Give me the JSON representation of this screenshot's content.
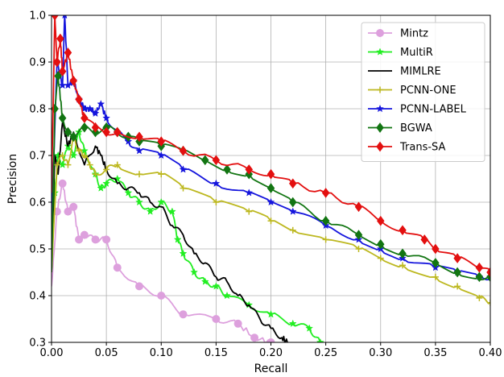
{
  "chart_data": {
    "type": "line",
    "title": "",
    "xlabel": "Recall",
    "ylabel": "Precision",
    "xlim": [
      0.0,
      0.4
    ],
    "ylim": [
      0.3,
      1.0
    ],
    "xticks": [
      "0.00",
      "0.05",
      "0.10",
      "0.15",
      "0.20",
      "0.25",
      "0.30",
      "0.35",
      "0.40"
    ],
    "yticks": [
      "0.3",
      "0.4",
      "0.5",
      "0.6",
      "0.7",
      "0.8",
      "0.9",
      "1.0"
    ],
    "grid": true,
    "legend_position": "top-right",
    "series": [
      {
        "name": "Mintz",
        "color": "#dda0dd",
        "marker": "circle",
        "x": [
          0.0,
          0.005,
          0.01,
          0.015,
          0.02,
          0.025,
          0.03,
          0.04,
          0.05,
          0.06,
          0.08,
          0.1,
          0.12,
          0.15,
          0.17,
          0.185,
          0.2
        ],
        "y": [
          0.42,
          0.58,
          0.64,
          0.58,
          0.59,
          0.52,
          0.53,
          0.52,
          0.52,
          0.46,
          0.42,
          0.4,
          0.36,
          0.35,
          0.34,
          0.31,
          0.3
        ]
      },
      {
        "name": "MultiR",
        "color": "#22ee22",
        "marker": "star",
        "x": [
          0.0,
          0.003,
          0.006,
          0.01,
          0.015,
          0.02,
          0.025,
          0.03,
          0.04,
          0.045,
          0.05,
          0.06,
          0.07,
          0.08,
          0.09,
          0.1,
          0.11,
          0.115,
          0.12,
          0.13,
          0.14,
          0.15,
          0.16,
          0.18,
          0.2,
          0.22,
          0.235,
          0.245
        ],
        "y": [
          0.45,
          0.62,
          0.7,
          0.68,
          0.72,
          0.7,
          0.75,
          0.71,
          0.66,
          0.63,
          0.64,
          0.65,
          0.62,
          0.6,
          0.58,
          0.6,
          0.58,
          0.52,
          0.49,
          0.45,
          0.43,
          0.42,
          0.4,
          0.38,
          0.36,
          0.34,
          0.33,
          0.3
        ]
      },
      {
        "name": "MIMLRE",
        "color": "#000000",
        "marker": "none",
        "x": [
          0.0,
          0.003,
          0.006,
          0.01,
          0.015,
          0.02,
          0.03,
          0.04,
          0.045,
          0.05,
          0.06,
          0.07,
          0.08,
          0.09,
          0.1,
          0.11,
          0.12,
          0.13,
          0.14,
          0.15,
          0.16,
          0.17,
          0.18,
          0.19,
          0.2,
          0.21,
          0.215
        ],
        "y": [
          0.45,
          0.7,
          0.66,
          0.77,
          0.72,
          0.75,
          0.68,
          0.72,
          0.7,
          0.67,
          0.64,
          0.63,
          0.62,
          0.6,
          0.59,
          0.55,
          0.53,
          0.49,
          0.47,
          0.44,
          0.43,
          0.4,
          0.38,
          0.35,
          0.33,
          0.31,
          0.3
        ]
      },
      {
        "name": "PCNN-ONE",
        "color": "#bdb820",
        "marker": "plus",
        "x": [
          0.0,
          0.005,
          0.01,
          0.015,
          0.02,
          0.025,
          0.03,
          0.035,
          0.04,
          0.05,
          0.06,
          0.08,
          0.1,
          0.12,
          0.15,
          0.18,
          0.2,
          0.22,
          0.25,
          0.28,
          0.3,
          0.32,
          0.35,
          0.37,
          0.39,
          0.4
        ],
        "y": [
          0.45,
          0.68,
          0.7,
          0.68,
          0.74,
          0.71,
          0.7,
          0.68,
          0.66,
          0.67,
          0.68,
          0.66,
          0.66,
          0.63,
          0.6,
          0.58,
          0.56,
          0.54,
          0.52,
          0.5,
          0.48,
          0.465,
          0.44,
          0.42,
          0.395,
          0.385
        ]
      },
      {
        "name": "PCNN-LABEL",
        "color": "#1515dd",
        "marker": "star",
        "x": [
          0.0,
          0.005,
          0.01,
          0.012,
          0.015,
          0.02,
          0.025,
          0.03,
          0.035,
          0.04,
          0.045,
          0.05,
          0.06,
          0.07,
          0.08,
          0.1,
          0.12,
          0.15,
          0.18,
          0.2,
          0.22,
          0.25,
          0.28,
          0.3,
          0.32,
          0.35,
          0.37,
          0.39,
          0.4
        ],
        "y": [
          0.55,
          0.9,
          0.85,
          1.0,
          0.85,
          0.86,
          0.82,
          0.8,
          0.8,
          0.79,
          0.81,
          0.78,
          0.75,
          0.73,
          0.71,
          0.7,
          0.67,
          0.64,
          0.62,
          0.6,
          0.58,
          0.55,
          0.52,
          0.5,
          0.48,
          0.46,
          0.45,
          0.44,
          0.44
        ]
      },
      {
        "name": "BGWA",
        "color": "#127512",
        "marker": "diamond",
        "x": [
          0.0,
          0.003,
          0.006,
          0.01,
          0.015,
          0.02,
          0.03,
          0.04,
          0.05,
          0.06,
          0.07,
          0.08,
          0.1,
          0.12,
          0.14,
          0.16,
          0.18,
          0.2,
          0.22,
          0.25,
          0.28,
          0.3,
          0.32,
          0.35,
          0.37,
          0.39,
          0.4
        ],
        "y": [
          0.45,
          0.8,
          0.87,
          0.78,
          0.75,
          0.74,
          0.76,
          0.75,
          0.76,
          0.75,
          0.74,
          0.73,
          0.72,
          0.71,
          0.69,
          0.67,
          0.66,
          0.63,
          0.6,
          0.56,
          0.53,
          0.51,
          0.49,
          0.47,
          0.45,
          0.44,
          0.44
        ]
      },
      {
        "name": "Trans-SA",
        "color": "#e31010",
        "marker": "diamond",
        "x": [
          0.0,
          0.003,
          0.005,
          0.008,
          0.01,
          0.015,
          0.02,
          0.025,
          0.03,
          0.04,
          0.05,
          0.06,
          0.08,
          0.1,
          0.12,
          0.15,
          0.18,
          0.2,
          0.22,
          0.25,
          0.28,
          0.3,
          0.32,
          0.34,
          0.35,
          0.37,
          0.39,
          0.4
        ],
        "y": [
          0.62,
          1.0,
          0.9,
          0.95,
          0.88,
          0.92,
          0.86,
          0.82,
          0.78,
          0.76,
          0.75,
          0.75,
          0.74,
          0.73,
          0.71,
          0.69,
          0.67,
          0.66,
          0.64,
          0.62,
          0.59,
          0.56,
          0.54,
          0.52,
          0.5,
          0.48,
          0.46,
          0.45
        ]
      }
    ]
  }
}
